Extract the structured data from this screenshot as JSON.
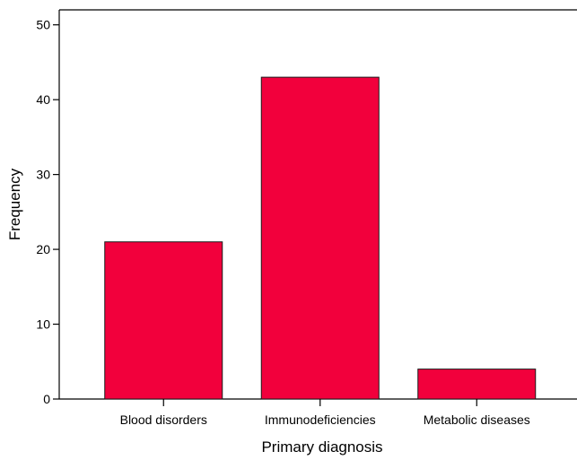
{
  "chart_data": {
    "type": "bar",
    "title": "",
    "xlabel": "Primary diagnosis",
    "ylabel": "Frequency",
    "categories": [
      "Blood disorders",
      "Immunodeficiencies",
      "Metabolic diseases"
    ],
    "values": [
      21,
      43,
      4
    ],
    "ylim": [
      0,
      52
    ],
    "yticks": [
      0,
      10,
      20,
      30,
      40,
      50
    ],
    "grid": false,
    "legend": "none",
    "bar_color": "#f2003c",
    "bar_edge_color": "#1a1a1a"
  }
}
